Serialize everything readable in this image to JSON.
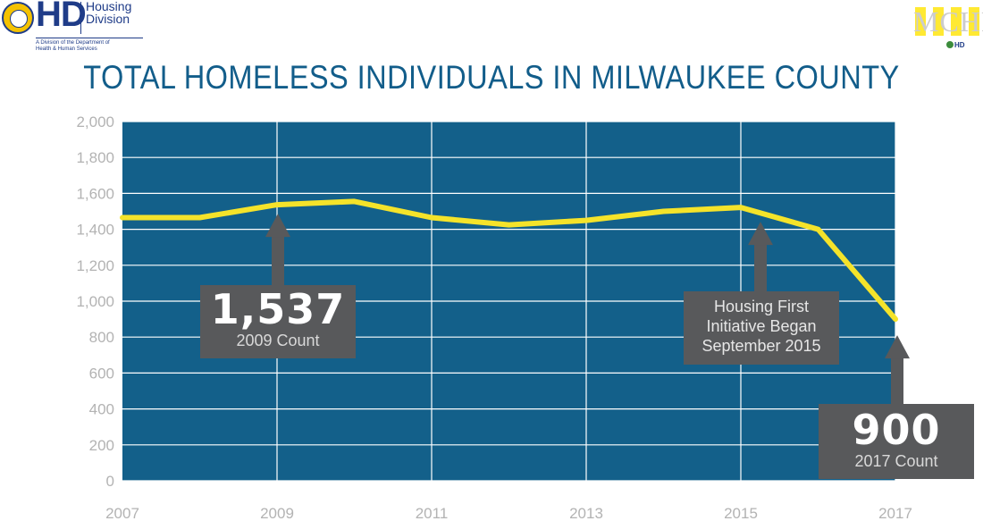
{
  "header": {
    "org_mark": "HD",
    "org_name_line1": "Housing",
    "org_name_line2": "Division",
    "org_subtitle_line1": "A Division of the Department of",
    "org_subtitle_line2": "Health & Human Services",
    "seal_text": "MILWAUKEE COUNTY",
    "partner_letters": "MCHF",
    "partner_small": "HD"
  },
  "colors": {
    "plot_bg": "#13608a",
    "line": "#f5e32a",
    "title": "#125d8a",
    "callout_bg": "#58595b",
    "tick_text": "#b3b3b3"
  },
  "chart_data": {
    "type": "line",
    "title": "TOTAL HOMELESS INDIVIDUALS IN MILWAUKEE COUNTY",
    "xlabel": "",
    "ylabel": "",
    "x": [
      2007,
      2008,
      2009,
      2010,
      2011,
      2012,
      2013,
      2014,
      2015,
      2016,
      2017
    ],
    "y": [
      1465,
      1465,
      1537,
      1555,
      1465,
      1425,
      1450,
      1500,
      1522,
      1400,
      900
    ],
    "xlim": [
      2007,
      2017
    ],
    "ylim": [
      0,
      2000
    ],
    "yticks": [
      0,
      200,
      400,
      600,
      800,
      1000,
      1200,
      1400,
      1600,
      1800,
      2000
    ],
    "ytick_labels": [
      "0",
      "200",
      "400",
      "600",
      "800",
      "1,000",
      "1,200",
      "1,400",
      "1,600",
      "1,800",
      "2,000"
    ],
    "xticks": [
      2007,
      2009,
      2011,
      2013,
      2015,
      2017
    ],
    "xtick_labels": [
      "2007",
      "2009",
      "2011",
      "2013",
      "2015",
      "2017"
    ],
    "grid": true,
    "legend": "none",
    "annotations": [
      {
        "id": "a2009",
        "x": 2009,
        "big": "1,537",
        "label": "2009 Count"
      },
      {
        "id": "a2015",
        "x": 2015,
        "lines": [
          "Housing First",
          "Initiative Began",
          "September 2015"
        ]
      },
      {
        "id": "a2017",
        "x": 2017,
        "big": "900",
        "label": "2017 Count"
      }
    ]
  }
}
